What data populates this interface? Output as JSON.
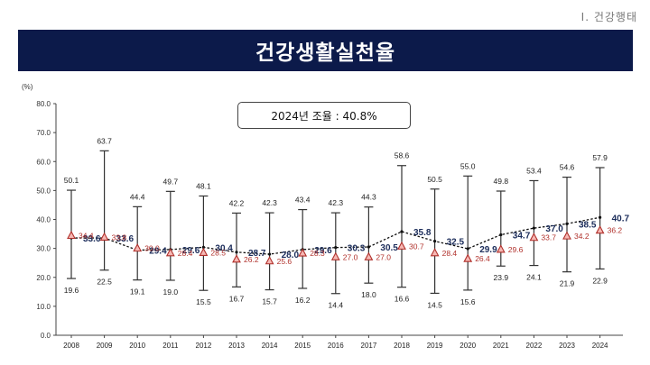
{
  "header": {
    "section_label": "Ⅰ. 건강행태",
    "title": "건강생활실천율"
  },
  "overall": {
    "text": "2024년 조율 : 40.8%"
  },
  "colors": {
    "title_bg": "#0c1a4a",
    "total": "#1b2c5a",
    "unadjusted": "#b0302b",
    "range": "#333333"
  },
  "chart_data": {
    "type": "line",
    "title": "건강생활실천율",
    "ylabel": "(%)",
    "xlabel": "",
    "ylim": [
      0,
      80
    ],
    "yticks": [
      "0.0",
      "10.0",
      "20.0",
      "30.0",
      "40.0",
      "50.0",
      "60.0",
      "70.0",
      "80.0"
    ],
    "x": [
      "2008",
      "2009",
      "2010",
      "2011",
      "2012",
      "2013",
      "2014",
      "2015",
      "2016",
      "2017",
      "2018",
      "2019",
      "2020",
      "2021",
      "2022",
      "2023",
      "2024"
    ],
    "series": [
      {
        "key": "total",
        "values": [
          33.6,
          33.6,
          29.4,
          29.6,
          30.4,
          28.7,
          28.0,
          29.6,
          30.3,
          30.5,
          35.8,
          32.5,
          29.9,
          34.7,
          37.0,
          38.5,
          40.7
        ]
      },
      {
        "key": "unadjusted",
        "values": [
          34.4,
          33.8,
          30.0,
          28.4,
          28.5,
          26.2,
          25.6,
          28.3,
          27.0,
          27.0,
          30.7,
          28.4,
          26.4,
          29.6,
          33.7,
          34.2,
          36.2
        ]
      },
      {
        "key": "upper",
        "values": [
          50.1,
          63.7,
          44.4,
          49.7,
          48.1,
          42.2,
          42.3,
          43.4,
          42.3,
          44.3,
          58.6,
          50.5,
          55.0,
          49.8,
          53.4,
          54.6,
          57.9
        ]
      },
      {
        "key": "lower",
        "values": [
          19.6,
          22.5,
          19.1,
          19.0,
          15.5,
          16.7,
          15.7,
          16.2,
          14.4,
          18.0,
          16.6,
          14.5,
          15.6,
          23.9,
          24.1,
          21.9,
          22.9
        ]
      }
    ],
    "grid": false,
    "legend": "none"
  }
}
